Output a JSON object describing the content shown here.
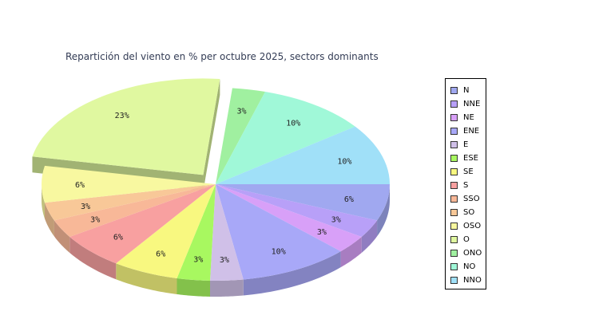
{
  "chart_data": {
    "type": "pie",
    "style": "3d-exploded",
    "title": "Repartición del viento en % per octubre 2025, sectors dominants",
    "legend_position": "right",
    "slices": [
      {
        "label": "N",
        "value": 6,
        "display": "6%",
        "color": "#a0a8f0"
      },
      {
        "label": "NNE",
        "value": 3,
        "display": "3%",
        "color": "#b8a0f8"
      },
      {
        "label": "NE",
        "value": 3,
        "display": "3%",
        "color": "#d8a0f8"
      },
      {
        "label": "ENE",
        "value": 10,
        "display": "10%",
        "color": "#a8a8f8"
      },
      {
        "label": "E",
        "value": 3,
        "display": "3%",
        "color": "#d0c0e8"
      },
      {
        "label": "ESE",
        "value": 3,
        "display": "3%",
        "color": "#a8f860"
      },
      {
        "label": "SE",
        "value": 6,
        "display": "6%",
        "color": "#f8f880"
      },
      {
        "label": "S",
        "value": 6,
        "display": "6%",
        "color": "#f8a0a0"
      },
      {
        "label": "SSO",
        "value": 3,
        "display": "3%",
        "color": "#f8b898"
      },
      {
        "label": "SO",
        "value": 3,
        "display": "3%",
        "color": "#f8c898"
      },
      {
        "label": "OSO",
        "value": 6,
        "display": "6%",
        "color": "#f8f8a0"
      },
      {
        "label": "O",
        "value": 23,
        "display": "23%",
        "color": "#e0f8a0",
        "exploded": true
      },
      {
        "label": "ONO",
        "value": 3,
        "display": "3%",
        "color": "#a0f0a0"
      },
      {
        "label": "NO",
        "value": 10,
        "display": "10%",
        "color": "#a0f8d8"
      },
      {
        "label": "NNO",
        "value": 10,
        "display": "10%",
        "color": "#a0e0f8"
      }
    ]
  }
}
